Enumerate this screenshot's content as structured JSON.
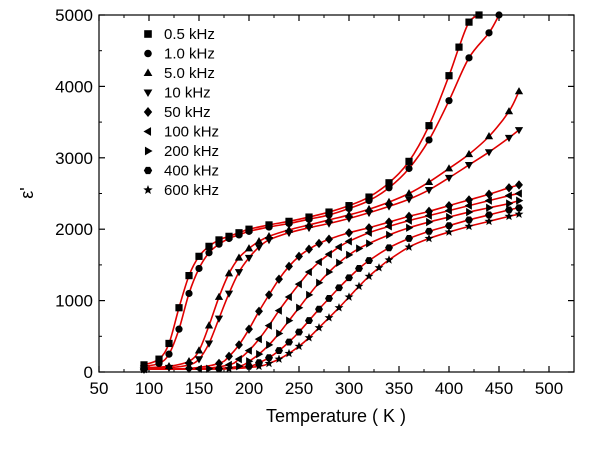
{
  "chart_data": {
    "type": "scatter",
    "title": "",
    "xlabel": "Temperature ( K )",
    "ylabel": "ε'",
    "xlim": [
      50,
      525
    ],
    "ylim": [
      0,
      5000
    ],
    "xticks": [
      50,
      100,
      150,
      200,
      250,
      300,
      350,
      400,
      450,
      500
    ],
    "yticks": [
      0,
      1000,
      2000,
      3000,
      4000,
      5000
    ],
    "grid": false,
    "legend_position": "top-left",
    "fit_line_color": "#e00000",
    "marker_color": "#000000",
    "series": [
      {
        "name": "0.5 kHz",
        "marker": "square",
        "x": [
          95,
          110,
          120,
          130,
          140,
          150,
          160,
          170,
          180,
          190,
          200,
          220,
          240,
          260,
          280,
          300,
          320,
          340,
          360,
          380,
          400,
          410,
          420,
          430
        ],
        "y": [
          100,
          180,
          400,
          900,
          1350,
          1620,
          1760,
          1850,
          1900,
          1950,
          2000,
          2060,
          2110,
          2170,
          2240,
          2330,
          2450,
          2650,
          2950,
          3450,
          4150,
          4550,
          4900,
          5000
        ]
      },
      {
        "name": "1.0 kHz",
        "marker": "circle",
        "x": [
          95,
          110,
          120,
          130,
          140,
          150,
          160,
          170,
          180,
          190,
          200,
          220,
          240,
          260,
          280,
          300,
          320,
          340,
          360,
          380,
          400,
          420,
          440,
          450
        ],
        "y": [
          80,
          120,
          250,
          600,
          1100,
          1450,
          1670,
          1790,
          1870,
          1920,
          1970,
          2030,
          2080,
          2140,
          2200,
          2290,
          2400,
          2580,
          2850,
          3250,
          3800,
          4400,
          4750,
          5000
        ]
      },
      {
        "name": "5.0 kHz",
        "marker": "triangle-up",
        "x": [
          95,
          120,
          140,
          150,
          160,
          170,
          180,
          190,
          200,
          210,
          220,
          240,
          260,
          280,
          300,
          320,
          340,
          360,
          380,
          400,
          420,
          440,
          460,
          470
        ],
        "y": [
          60,
          80,
          150,
          300,
          650,
          1050,
          1380,
          1600,
          1730,
          1830,
          1900,
          1990,
          2060,
          2130,
          2200,
          2280,
          2380,
          2500,
          2660,
          2850,
          3050,
          3300,
          3650,
          3930
        ]
      },
      {
        "name": "10  kHz",
        "marker": "triangle-down",
        "x": [
          95,
          120,
          140,
          150,
          160,
          170,
          180,
          190,
          200,
          210,
          220,
          240,
          260,
          280,
          300,
          320,
          340,
          360,
          380,
          400,
          420,
          440,
          460,
          470
        ],
        "y": [
          50,
          60,
          100,
          180,
          400,
          750,
          1100,
          1400,
          1600,
          1750,
          1850,
          1950,
          2020,
          2080,
          2150,
          2230,
          2320,
          2420,
          2550,
          2720,
          2900,
          3080,
          3280,
          3390
        ]
      },
      {
        "name": "50  kHz",
        "marker": "diamond",
        "x": [
          95,
          140,
          170,
          180,
          190,
          200,
          210,
          220,
          230,
          240,
          250,
          260,
          270,
          280,
          300,
          320,
          340,
          360,
          380,
          400,
          420,
          440,
          460,
          470
        ],
        "y": [
          40,
          50,
          120,
          220,
          380,
          600,
          850,
          1080,
          1300,
          1480,
          1620,
          1720,
          1800,
          1860,
          1950,
          2020,
          2100,
          2180,
          2250,
          2330,
          2410,
          2490,
          2580,
          2620
        ]
      },
      {
        "name": "100  kHz",
        "marker": "triangle-left",
        "x": [
          95,
          150,
          180,
          190,
          200,
          210,
          220,
          230,
          240,
          250,
          260,
          270,
          280,
          290,
          300,
          320,
          340,
          360,
          380,
          400,
          420,
          440,
          460,
          470
        ],
        "y": [
          40,
          45,
          100,
          180,
          300,
          460,
          650,
          860,
          1050,
          1230,
          1400,
          1540,
          1650,
          1750,
          1830,
          1950,
          2040,
          2120,
          2190,
          2260,
          2330,
          2400,
          2470,
          2500
        ]
      },
      {
        "name": "200  kHz",
        "marker": "triangle-right",
        "x": [
          95,
          160,
          190,
          200,
          210,
          220,
          230,
          240,
          250,
          260,
          270,
          280,
          290,
          300,
          310,
          320,
          340,
          360,
          380,
          400,
          420,
          440,
          460,
          470
        ],
        "y": [
          40,
          45,
          80,
          150,
          250,
          380,
          540,
          720,
          900,
          1080,
          1250,
          1400,
          1530,
          1640,
          1730,
          1800,
          1920,
          2020,
          2100,
          2170,
          2240,
          2300,
          2360,
          2400
        ]
      },
      {
        "name": "400  kHz",
        "marker": "hexagon",
        "x": [
          95,
          170,
          200,
          210,
          220,
          230,
          240,
          250,
          260,
          270,
          280,
          290,
          300,
          310,
          320,
          340,
          360,
          380,
          400,
          420,
          440,
          460,
          470
        ],
        "y": [
          40,
          45,
          80,
          130,
          200,
          300,
          420,
          560,
          720,
          880,
          1030,
          1180,
          1320,
          1450,
          1560,
          1740,
          1870,
          1970,
          2050,
          2130,
          2200,
          2270,
          2300
        ]
      },
      {
        "name": "600  kHz",
        "marker": "star",
        "x": [
          95,
          180,
          210,
          220,
          230,
          240,
          250,
          260,
          270,
          280,
          290,
          300,
          310,
          320,
          330,
          340,
          360,
          380,
          400,
          420,
          440,
          460,
          470
        ],
        "y": [
          40,
          45,
          80,
          120,
          180,
          260,
          360,
          480,
          620,
          760,
          900,
          1050,
          1200,
          1340,
          1460,
          1570,
          1750,
          1870,
          1960,
          2040,
          2110,
          2180,
          2210
        ]
      }
    ]
  }
}
